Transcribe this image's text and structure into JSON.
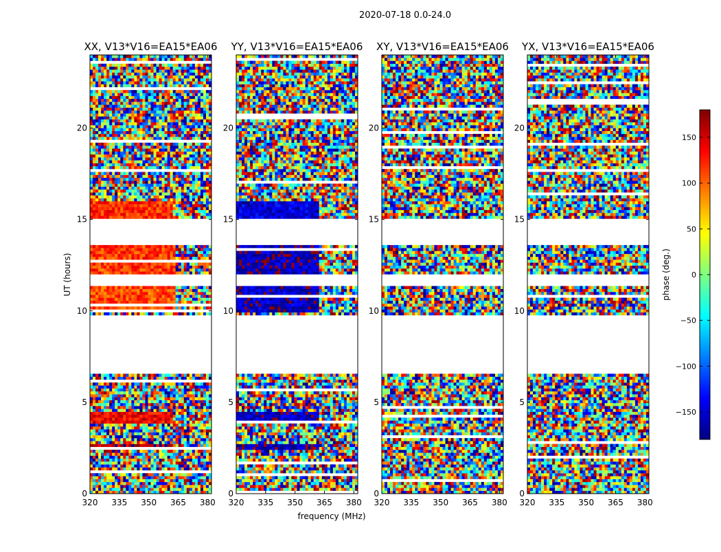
{
  "figure": {
    "suptitle": "2020-07-18 0.0-24.0",
    "xlabel": "frequency (MHz)",
    "ylabel": "UT (hours)",
    "colorbar_label": "phase (deg.)"
  },
  "chart_data": {
    "type": "heatmap",
    "colormap": "jet",
    "color_range": [
      -180,
      180
    ],
    "colorbar_ticks": [
      150,
      100,
      50,
      0,
      -50,
      -100,
      -150
    ],
    "xlim": [
      320,
      382
    ],
    "ylim": [
      0,
      24
    ],
    "x_ticks": [
      320,
      335,
      350,
      365,
      380
    ],
    "y_ticks": [
      0,
      5,
      10,
      15,
      20
    ],
    "flagged_time_ranges_hours": [
      [
        6.6,
        9.8
      ],
      [
        13.6,
        15.0
      ],
      [
        11.4,
        12.0
      ]
    ],
    "panels": [
      {
        "title": "XX, V13*V16=EA15*EA06",
        "coherent_segments": [
          {
            "t_start": 10.0,
            "t_end": 11.4,
            "f_end": 363,
            "phase_deg": 110
          },
          {
            "t_start": 12.0,
            "t_end": 13.6,
            "f_end": 363,
            "phase_deg": 115
          },
          {
            "t_start": 15.0,
            "t_end": 16.0,
            "f_end": 362,
            "phase_deg": 120
          },
          {
            "t_start": 3.8,
            "t_end": 4.4,
            "f_end": 362,
            "phase_deg": 140
          },
          {
            "t_start": 2.4,
            "t_end": 2.7,
            "f_end": 362,
            "phase_deg": 160
          }
        ]
      },
      {
        "title": "YY, V13*V16=EA15*EA06",
        "coherent_segments": [
          {
            "t_start": 10.0,
            "t_end": 11.4,
            "f_end": 362,
            "phase_deg": -155
          },
          {
            "t_start": 12.0,
            "t_end": 13.6,
            "f_end": 362,
            "phase_deg": -160
          },
          {
            "t_start": 15.0,
            "t_end": 16.0,
            "f_end": 362,
            "phase_deg": -150
          },
          {
            "t_start": 3.8,
            "t_end": 4.4,
            "f_end": 362,
            "phase_deg": -160
          },
          {
            "t_start": 2.4,
            "t_end": 2.7,
            "f_end": 362,
            "phase_deg": -165
          }
        ]
      },
      {
        "title": "XY, V13*V16=EA15*EA06",
        "coherent_segments": []
      },
      {
        "title": "YX, V13*V16=EA15*EA06",
        "coherent_segments": []
      }
    ]
  }
}
